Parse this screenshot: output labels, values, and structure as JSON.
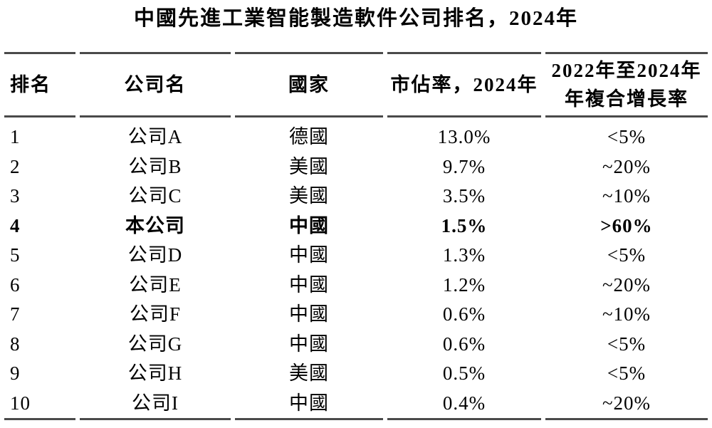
{
  "title": "中國先進工業智能製造軟件公司排名，2024年",
  "table": {
    "headers": {
      "rank": "排名",
      "company": "公司名",
      "country": "國家",
      "share": "市佔率，2024年",
      "cagr_line1": "2022年至2024年",
      "cagr_line2": "年複合增長率"
    },
    "rows": [
      {
        "rank": "1",
        "company": "公司A",
        "country": "德國",
        "share": "13.0%",
        "cagr": "<5%"
      },
      {
        "rank": "2",
        "company": "公司B",
        "country": "美國",
        "share": "9.7%",
        "cagr": "~20%"
      },
      {
        "rank": "3",
        "company": "公司C",
        "country": "美國",
        "share": "3.5%",
        "cagr": "~10%"
      },
      {
        "rank": "4",
        "company": "本公司",
        "country": "中國",
        "share": "1.5%",
        "cagr": ">60%"
      },
      {
        "rank": "5",
        "company": "公司D",
        "country": "中國",
        "share": "1.3%",
        "cagr": "<5%"
      },
      {
        "rank": "6",
        "company": "公司E",
        "country": "中國",
        "share": "1.2%",
        "cagr": "~20%"
      },
      {
        "rank": "7",
        "company": "公司F",
        "country": "中國",
        "share": "0.6%",
        "cagr": "~10%"
      },
      {
        "rank": "8",
        "company": "公司G",
        "country": "中國",
        "share": "0.6%",
        "cagr": "<5%"
      },
      {
        "rank": "9",
        "company": "公司H",
        "country": "美國",
        "share": "0.5%",
        "cagr": "<5%"
      },
      {
        "rank": "10",
        "company": "公司I",
        "country": "中國",
        "share": "0.4%",
        "cagr": "~20%"
      }
    ],
    "colors": {
      "rule": "#4a4a4a",
      "text": "#000000",
      "background": "#ffffff"
    }
  }
}
